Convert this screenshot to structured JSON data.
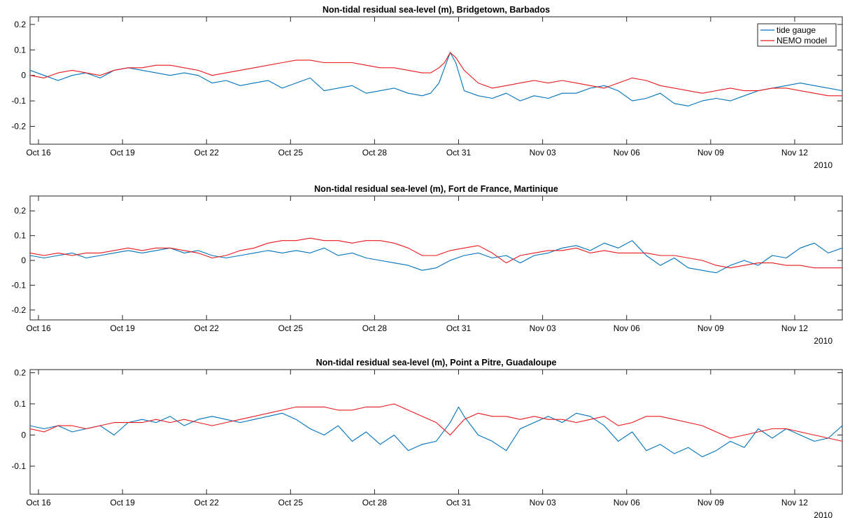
{
  "chart_data": [
    {
      "type": "line",
      "title": "Non-tidal residual sea-level (m), Bridgetown, Barbados",
      "x_tick_labels": [
        "Oct 16",
        "Oct 19",
        "Oct 22",
        "Oct 25",
        "Oct 28",
        "Oct 31",
        "Nov 03",
        "Nov 06",
        "Nov 09",
        "Nov 12"
      ],
      "x_secondary_label": "2010",
      "x_range_days": [
        15.7,
        44.7
      ],
      "ylim": [
        -0.27,
        0.23
      ],
      "y_ticks": [
        -0.2,
        -0.1,
        0,
        0.1,
        0.2
      ],
      "y_tick_labels": [
        "-0.2",
        "-0.1",
        "0",
        "0.1",
        "0.2"
      ],
      "legend": {
        "placement": "top-right"
      },
      "series": [
        {
          "name": "tide gauge",
          "color": "#0072bd",
          "x": [
            15.7,
            16.2,
            16.7,
            17.2,
            17.7,
            18.2,
            18.7,
            19.2,
            19.7,
            20.2,
            20.7,
            21.2,
            21.7,
            22.2,
            22.7,
            23.2,
            23.7,
            24.2,
            24.7,
            25.2,
            25.7,
            26.2,
            26.7,
            27.2,
            27.7,
            28.2,
            28.7,
            29.2,
            29.7,
            30.0,
            30.3,
            30.5,
            30.7,
            30.9,
            31.2,
            31.7,
            32.2,
            32.7,
            33.2,
            33.7,
            34.2,
            34.7,
            35.2,
            35.7,
            36.2,
            36.7,
            37.2,
            37.7,
            38.2,
            38.7,
            39.2,
            39.7,
            40.2,
            40.7,
            41.2,
            41.7,
            42.2,
            42.7,
            43.2,
            43.7,
            44.2,
            44.7
          ],
          "y": [
            0.02,
            0.0,
            -0.02,
            0.0,
            0.01,
            -0.01,
            0.02,
            0.03,
            0.02,
            0.01,
            0.0,
            0.01,
            0.0,
            -0.03,
            -0.02,
            -0.04,
            -0.03,
            -0.02,
            -0.05,
            -0.03,
            -0.01,
            -0.06,
            -0.05,
            -0.04,
            -0.07,
            -0.06,
            -0.05,
            -0.07,
            -0.08,
            -0.07,
            -0.03,
            0.03,
            0.09,
            0.05,
            -0.06,
            -0.08,
            -0.09,
            -0.07,
            -0.1,
            -0.08,
            -0.09,
            -0.07,
            -0.07,
            -0.05,
            -0.04,
            -0.06,
            -0.1,
            -0.09,
            -0.07,
            -0.11,
            -0.12,
            -0.1,
            -0.09,
            -0.1,
            -0.08,
            -0.06,
            -0.05,
            -0.04,
            -0.03,
            -0.04,
            -0.05,
            -0.06
          ]
        },
        {
          "name": "NEMO model",
          "color": "#e8191c",
          "x": [
            15.7,
            16.2,
            16.7,
            17.2,
            17.7,
            18.2,
            18.7,
            19.2,
            19.7,
            20.2,
            20.7,
            21.2,
            21.7,
            22.2,
            22.7,
            23.2,
            23.7,
            24.2,
            24.7,
            25.2,
            25.7,
            26.2,
            26.7,
            27.2,
            27.7,
            28.2,
            28.7,
            29.2,
            29.7,
            30.0,
            30.3,
            30.5,
            30.7,
            30.9,
            31.2,
            31.7,
            32.2,
            32.7,
            33.2,
            33.7,
            34.2,
            34.7,
            35.2,
            35.7,
            36.2,
            36.7,
            37.2,
            37.7,
            38.2,
            38.7,
            39.2,
            39.7,
            40.2,
            40.7,
            41.2,
            41.7,
            42.2,
            42.7,
            43.2,
            43.7,
            44.2,
            44.7
          ],
          "y": [
            0.0,
            -0.01,
            0.01,
            0.02,
            0.01,
            0.0,
            0.02,
            0.03,
            0.03,
            0.04,
            0.04,
            0.03,
            0.02,
            0.0,
            0.01,
            0.02,
            0.03,
            0.04,
            0.05,
            0.06,
            0.06,
            0.05,
            0.05,
            0.05,
            0.04,
            0.03,
            0.03,
            0.02,
            0.01,
            0.01,
            0.03,
            0.05,
            0.09,
            0.07,
            0.02,
            -0.03,
            -0.05,
            -0.04,
            -0.03,
            -0.02,
            -0.03,
            -0.02,
            -0.03,
            -0.04,
            -0.05,
            -0.03,
            -0.01,
            -0.02,
            -0.04,
            -0.05,
            -0.06,
            -0.07,
            -0.06,
            -0.05,
            -0.06,
            -0.06,
            -0.05,
            -0.05,
            -0.06,
            -0.07,
            -0.08,
            -0.08
          ]
        }
      ]
    },
    {
      "type": "line",
      "title": "Non-tidal residual sea-level (m), Fort de France, Martinique",
      "x_tick_labels": [
        "Oct 16",
        "Oct 19",
        "Oct 22",
        "Oct 25",
        "Oct 28",
        "Oct 31",
        "Nov 03",
        "Nov 06",
        "Nov 09",
        "Nov 12"
      ],
      "x_secondary_label": "2010",
      "x_range_days": [
        15.7,
        44.7
      ],
      "ylim": [
        -0.24,
        0.26
      ],
      "y_ticks": [
        -0.2,
        -0.1,
        0,
        0.1,
        0.2
      ],
      "y_tick_labels": [
        "-0.2",
        "-0.1",
        "0",
        "0.1",
        "0.2"
      ],
      "series": [
        {
          "name": "tide gauge",
          "color": "#0072bd",
          "x": [
            15.7,
            16.2,
            16.7,
            17.2,
            17.7,
            18.2,
            18.7,
            19.2,
            19.7,
            20.2,
            20.7,
            21.2,
            21.7,
            22.2,
            22.7,
            23.2,
            23.7,
            24.2,
            24.7,
            25.2,
            25.7,
            26.2,
            26.7,
            27.2,
            27.7,
            28.2,
            28.7,
            29.2,
            29.7,
            30.2,
            30.7,
            31.2,
            31.7,
            32.2,
            32.7,
            33.2,
            33.7,
            34.2,
            34.7,
            35.2,
            35.7,
            36.2,
            36.7,
            37.2,
            37.7,
            38.2,
            38.7,
            39.2,
            39.7,
            40.2,
            40.7,
            41.2,
            41.7,
            42.2,
            42.7,
            43.2,
            43.7,
            44.2,
            44.7
          ],
          "y": [
            0.02,
            0.01,
            0.02,
            0.03,
            0.01,
            0.02,
            0.03,
            0.04,
            0.03,
            0.04,
            0.05,
            0.03,
            0.04,
            0.02,
            0.01,
            0.02,
            0.03,
            0.04,
            0.03,
            0.04,
            0.03,
            0.05,
            0.02,
            0.03,
            0.01,
            0.0,
            -0.01,
            -0.02,
            -0.04,
            -0.03,
            0.0,
            0.02,
            0.03,
            0.01,
            0.02,
            -0.01,
            0.02,
            0.03,
            0.05,
            0.06,
            0.04,
            0.07,
            0.05,
            0.08,
            0.02,
            -0.02,
            0.01,
            -0.03,
            -0.04,
            -0.05,
            -0.02,
            0.0,
            -0.02,
            0.02,
            0.01,
            0.05,
            0.07,
            0.03,
            0.05
          ]
        },
        {
          "name": "NEMO model",
          "color": "#e8191c",
          "x": [
            15.7,
            16.2,
            16.7,
            17.2,
            17.7,
            18.2,
            18.7,
            19.2,
            19.7,
            20.2,
            20.7,
            21.2,
            21.7,
            22.2,
            22.7,
            23.2,
            23.7,
            24.2,
            24.7,
            25.2,
            25.7,
            26.2,
            26.7,
            27.2,
            27.7,
            28.2,
            28.7,
            29.2,
            29.7,
            30.2,
            30.7,
            31.2,
            31.7,
            32.2,
            32.7,
            33.2,
            33.7,
            34.2,
            34.7,
            35.2,
            35.7,
            36.2,
            36.7,
            37.2,
            37.7,
            38.2,
            38.7,
            39.2,
            39.7,
            40.2,
            40.7,
            41.2,
            41.7,
            42.2,
            42.7,
            43.2,
            43.7,
            44.2,
            44.7
          ],
          "y": [
            0.03,
            0.02,
            0.03,
            0.02,
            0.03,
            0.03,
            0.04,
            0.05,
            0.04,
            0.05,
            0.05,
            0.04,
            0.03,
            0.01,
            0.02,
            0.04,
            0.05,
            0.07,
            0.08,
            0.08,
            0.09,
            0.08,
            0.08,
            0.07,
            0.08,
            0.08,
            0.07,
            0.05,
            0.02,
            0.02,
            0.04,
            0.05,
            0.06,
            0.03,
            -0.01,
            0.02,
            0.03,
            0.04,
            0.04,
            0.05,
            0.03,
            0.04,
            0.03,
            0.03,
            0.03,
            0.02,
            0.02,
            0.01,
            0.0,
            -0.02,
            -0.03,
            -0.02,
            -0.01,
            -0.01,
            -0.02,
            -0.02,
            -0.03,
            -0.03,
            -0.03
          ]
        }
      ]
    },
    {
      "type": "line",
      "title": "Non-tidal residual sea-level (m), Point a Pitre, Guadaloupe",
      "x_tick_labels": [
        "Oct 16",
        "Oct 19",
        "Oct 22",
        "Oct 25",
        "Oct 28",
        "Oct 31",
        "Nov 03",
        "Nov 06",
        "Nov 09",
        "Nov 12"
      ],
      "x_secondary_label": "2010",
      "x_range_days": [
        15.7,
        44.7
      ],
      "ylim": [
        -0.19,
        0.21
      ],
      "y_ticks": [
        -0.1,
        0,
        0.1,
        0.2
      ],
      "y_tick_labels": [
        "-0.1",
        "0",
        "0.1",
        "0.2"
      ],
      "series": [
        {
          "name": "tide gauge",
          "color": "#0072bd",
          "x": [
            15.7,
            16.2,
            16.7,
            17.2,
            17.7,
            18.2,
            18.7,
            19.2,
            19.7,
            20.2,
            20.7,
            21.2,
            21.7,
            22.2,
            22.7,
            23.2,
            23.7,
            24.2,
            24.7,
            25.2,
            25.7,
            26.2,
            26.7,
            27.2,
            27.7,
            28.2,
            28.7,
            29.2,
            29.7,
            30.2,
            30.7,
            31.0,
            31.2,
            31.7,
            32.2,
            32.7,
            33.2,
            33.7,
            34.2,
            34.7,
            35.2,
            35.7,
            36.2,
            36.7,
            37.2,
            37.7,
            38.2,
            38.7,
            39.2,
            39.7,
            40.2,
            40.7,
            41.2,
            41.7,
            42.2,
            42.7,
            43.2,
            43.7,
            44.2,
            44.7
          ],
          "y": [
            0.03,
            0.02,
            0.03,
            0.01,
            0.02,
            0.03,
            0.0,
            0.04,
            0.05,
            0.04,
            0.06,
            0.03,
            0.05,
            0.06,
            0.05,
            0.04,
            0.05,
            0.06,
            0.07,
            0.05,
            0.02,
            0.0,
            0.03,
            -0.02,
            0.01,
            -0.03,
            0.0,
            -0.05,
            -0.03,
            -0.02,
            0.04,
            0.09,
            0.06,
            0.0,
            -0.02,
            -0.05,
            0.02,
            0.04,
            0.06,
            0.04,
            0.07,
            0.06,
            0.03,
            -0.02,
            0.01,
            -0.05,
            -0.03,
            -0.06,
            -0.04,
            -0.07,
            -0.05,
            -0.02,
            -0.04,
            0.02,
            -0.01,
            0.02,
            0.0,
            -0.02,
            -0.01,
            0.03
          ]
        },
        {
          "name": "NEMO model",
          "color": "#e8191c",
          "x": [
            15.7,
            16.2,
            16.7,
            17.2,
            17.7,
            18.2,
            18.7,
            19.2,
            19.7,
            20.2,
            20.7,
            21.2,
            21.7,
            22.2,
            22.7,
            23.2,
            23.7,
            24.2,
            24.7,
            25.2,
            25.7,
            26.2,
            26.7,
            27.2,
            27.7,
            28.2,
            28.7,
            29.2,
            29.7,
            30.2,
            30.7,
            31.0,
            31.2,
            31.7,
            32.2,
            32.7,
            33.2,
            33.7,
            34.2,
            34.7,
            35.2,
            35.7,
            36.2,
            36.7,
            37.2,
            37.7,
            38.2,
            38.7,
            39.2,
            39.7,
            40.2,
            40.7,
            41.2,
            41.7,
            42.2,
            42.7,
            43.2,
            43.7,
            44.2,
            44.7
          ],
          "y": [
            0.02,
            0.01,
            0.03,
            0.03,
            0.02,
            0.03,
            0.04,
            0.04,
            0.04,
            0.05,
            0.04,
            0.05,
            0.04,
            0.03,
            0.04,
            0.05,
            0.06,
            0.07,
            0.08,
            0.09,
            0.09,
            0.09,
            0.08,
            0.08,
            0.09,
            0.09,
            0.1,
            0.08,
            0.06,
            0.04,
            0.0,
            0.03,
            0.05,
            0.07,
            0.06,
            0.06,
            0.05,
            0.06,
            0.05,
            0.05,
            0.04,
            0.05,
            0.06,
            0.03,
            0.04,
            0.06,
            0.06,
            0.05,
            0.04,
            0.03,
            0.01,
            -0.01,
            0.0,
            0.01,
            0.02,
            0.02,
            0.01,
            0.0,
            -0.01,
            -0.02
          ]
        }
      ]
    }
  ]
}
